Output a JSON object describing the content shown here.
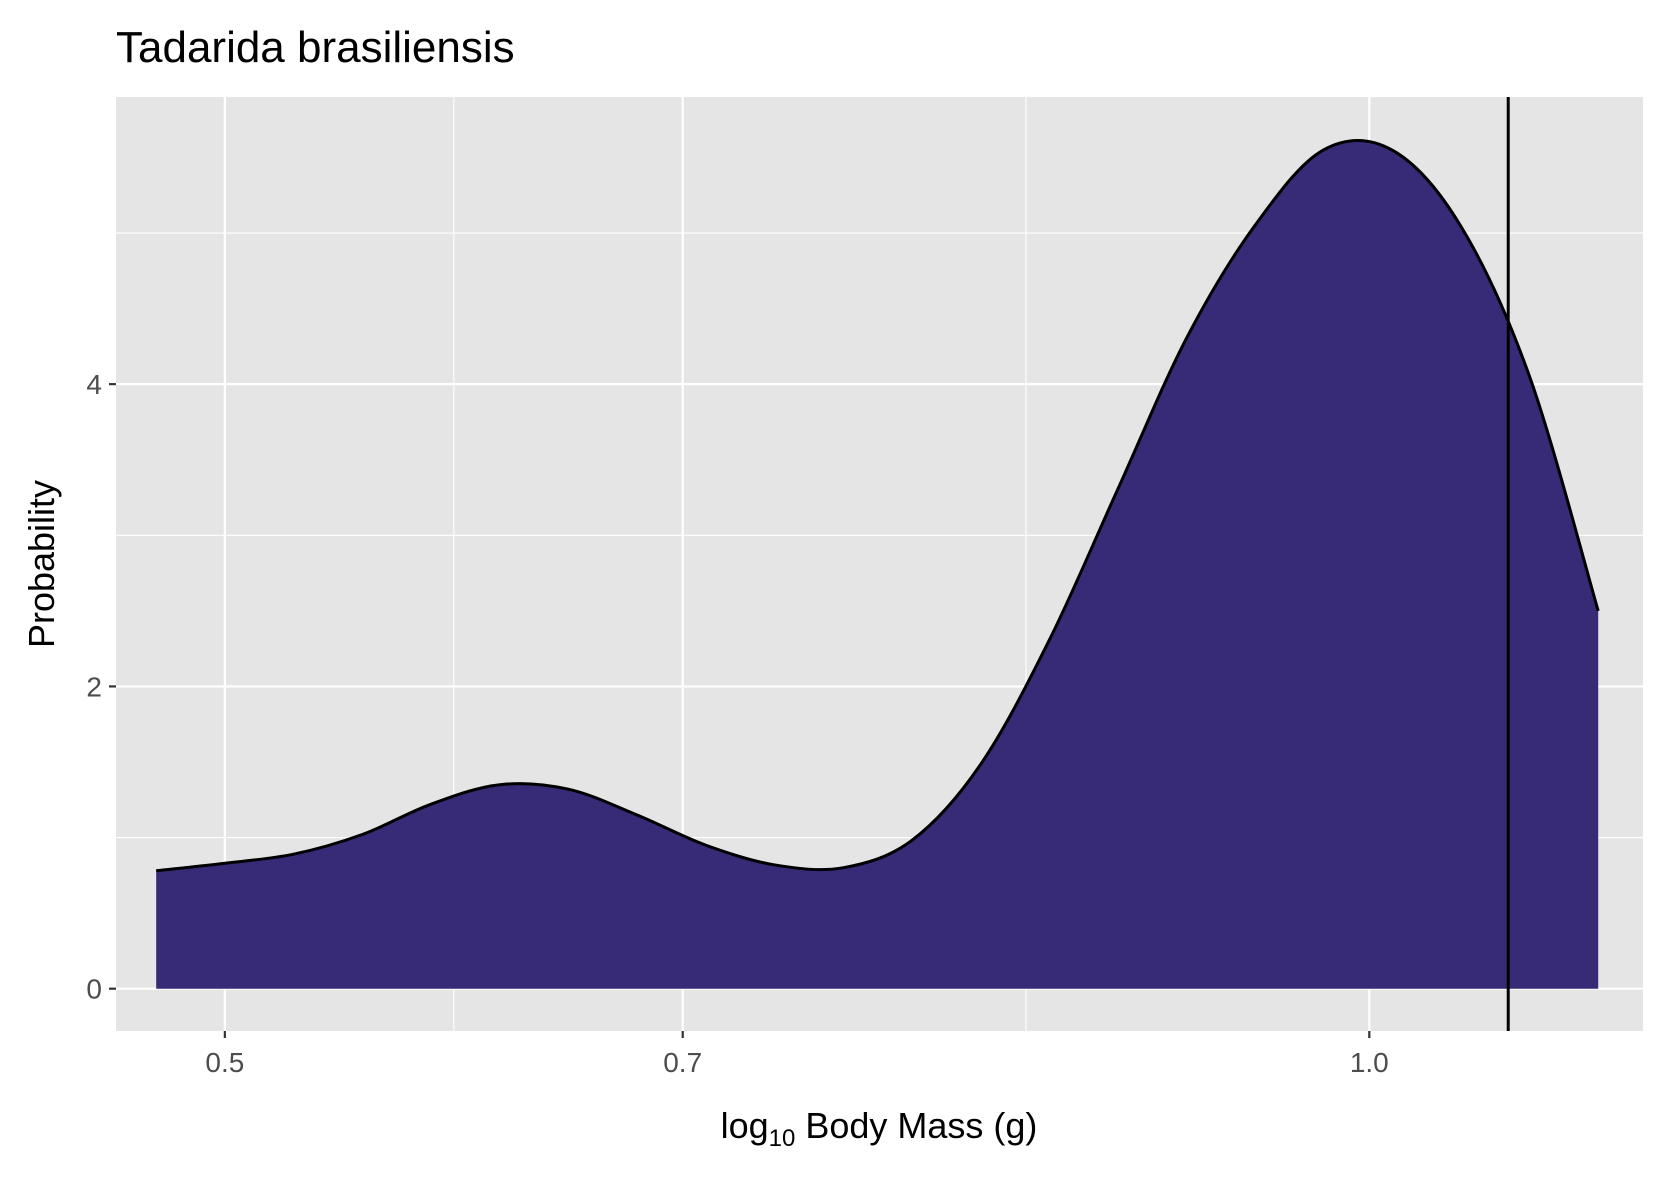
{
  "chart_data": {
    "type": "area",
    "title": "Tadarida brasiliensis",
    "xlabel": {
      "base": "log",
      "subscript": "10",
      "rest": " Body Mass (g)"
    },
    "ylabel": "Probability",
    "x_scale": "log10",
    "x_ticks": [
      {
        "value": 3.162,
        "label": "0.5"
      },
      {
        "value": 5.012,
        "label": "0.7"
      },
      {
        "value": 10.0,
        "label": "1.0"
      }
    ],
    "y_ticks": [
      {
        "value": 0,
        "label": "0"
      },
      {
        "value": 2,
        "label": "2"
      },
      {
        "value": 4,
        "label": "4"
      }
    ],
    "xlim": [
      2.834,
      13.17
    ],
    "ylim": [
      -0.28,
      5.9
    ],
    "grid": true,
    "fill_color": "#372a77",
    "line_color": "#000000",
    "panel_color": "#e5e5e5",
    "vline": {
      "x": 11.5
    },
    "series": [
      {
        "x": [
          2.951,
          3.162,
          3.388,
          3.631,
          3.89,
          4.169,
          4.467,
          4.786,
          5.129,
          5.495,
          5.888,
          6.31,
          6.761,
          7.244,
          7.762,
          8.318,
          8.913,
          9.55,
          10.23,
          10.96,
          11.75,
          12.59
        ],
        "y": [
          0.78,
          0.83,
          0.89,
          1.02,
          1.22,
          1.35,
          1.32,
          1.15,
          0.95,
          0.82,
          0.8,
          0.98,
          1.48,
          2.3,
          3.3,
          4.3,
          5.05,
          5.55,
          5.55,
          5.05,
          4.05,
          2.5
        ]
      }
    ]
  }
}
